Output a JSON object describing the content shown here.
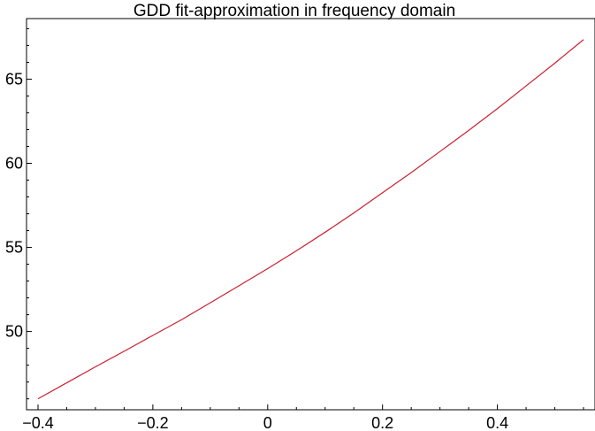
{
  "chart_data": {
    "type": "line",
    "title": "GDD fit-approximation in frequency domain",
    "xlabel": "",
    "ylabel": "",
    "xlim": [
      -0.42,
      0.57
    ],
    "ylim": [
      45.35,
      68.6
    ],
    "grid": false,
    "x_ticks": [
      -0.4,
      -0.2,
      0,
      0.2,
      0.4
    ],
    "x_tick_labels": [
      "−0.4",
      "−0.2",
      "0",
      "0.2",
      "0.4"
    ],
    "y_ticks": [
      50,
      55,
      60,
      65
    ],
    "y_tick_labels": [
      "50",
      "55",
      "60",
      "65"
    ],
    "series": [
      {
        "color": "#cc1f2e",
        "x": [
          -0.4,
          -0.35,
          -0.3,
          -0.25,
          -0.2,
          -0.15,
          -0.1,
          -0.05,
          0,
          0.05,
          0.1,
          0.15,
          0.2,
          0.25,
          0.3,
          0.35,
          0.4,
          0.45,
          0.5,
          0.55
        ],
        "y": [
          46.0,
          46.95,
          47.9,
          48.83,
          49.77,
          50.7,
          51.71,
          52.72,
          53.74,
          54.8,
          55.9,
          57.05,
          58.25,
          59.45,
          60.7,
          61.95,
          63.25,
          64.6,
          65.95,
          67.35
        ]
      }
    ]
  }
}
